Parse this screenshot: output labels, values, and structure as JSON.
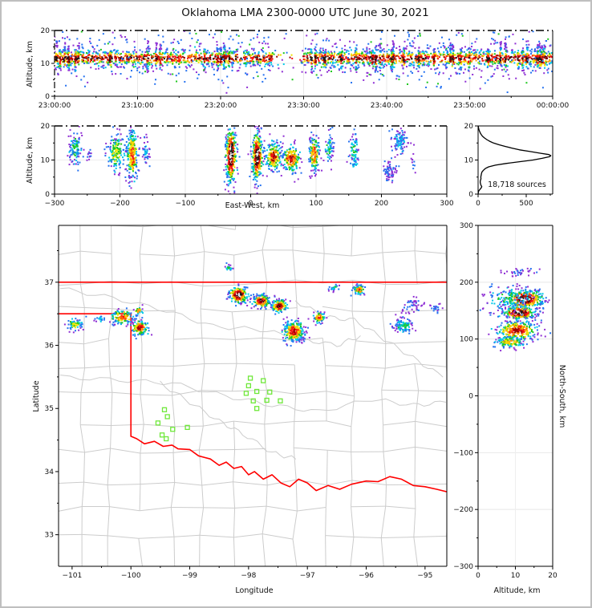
{
  "title": "Oklahoma LMA 2300-0000 UTC June 30, 2021",
  "chart_data": {
    "palette": [
      "#8f2fd4",
      "#2572f0",
      "#00c8e8",
      "#1ec81e",
      "#f0e400",
      "#ff9800",
      "#f51212",
      "#9c0404",
      "#181818",
      "#f5f5f5"
    ],
    "time_height": {
      "type": "scatter",
      "ylabel": "Altitude, km",
      "xlabel": "",
      "x_tick_labels": [
        "23:00:00",
        "23:10:00",
        "23:20:00",
        "23:30:00",
        "23:40:00",
        "23:50:00",
        "00:00:00"
      ],
      "x_tick_minutes": [
        0,
        10,
        20,
        30,
        40,
        50,
        60
      ],
      "x_range_minutes": [
        0,
        60
      ],
      "ylim": [
        0,
        20
      ],
      "y_ticks": [
        0,
        10,
        20
      ],
      "band": {
        "center_km": 11.6,
        "sigma_km": 1.25,
        "n": 2400,
        "gap_minutes": [
          26.3,
          29.7
        ],
        "gap_keep_fraction": 0.12
      },
      "streaks": {
        "n": 44,
        "alt_center": 11.3,
        "points_each": 22
      },
      "outliers": {
        "n": 330,
        "alt_min": 2.5,
        "alt_max": 19.8
      }
    },
    "ew_altitude": {
      "type": "scatter",
      "xlabel": "East-West, km",
      "ylabel": "Altitude, km",
      "xlim": [
        -300,
        300
      ],
      "x_ticks": [
        -300,
        -200,
        -100,
        0,
        100,
        200,
        300
      ],
      "ylim": [
        0,
        20
      ],
      "y_ticks": [
        0,
        10,
        20
      ],
      "clusters": [
        [
          -268,
          13.5,
          5,
          2.6,
          110,
          3
        ],
        [
          -247,
          12,
          2,
          1.2,
          12,
          1
        ],
        [
          -205,
          12,
          7,
          2.8,
          150,
          4
        ],
        [
          -181,
          11.5,
          4.5,
          3.8,
          260,
          6
        ],
        [
          -160,
          12.5,
          3,
          2,
          40,
          2
        ],
        [
          -30,
          11.5,
          4,
          4.3,
          400,
          9
        ],
        [
          10,
          11,
          4,
          3.6,
          330,
          9
        ],
        [
          35,
          11,
          6,
          2.1,
          190,
          7
        ],
        [
          62,
          10.3,
          7,
          2.0,
          190,
          7
        ],
        [
          97,
          11.8,
          4,
          2.7,
          170,
          6
        ],
        [
          120,
          13.5,
          3.5,
          2.2,
          60,
          3
        ],
        [
          158,
          12.5,
          3.5,
          2.8,
          80,
          3
        ],
        [
          213,
          6.8,
          5,
          1.4,
          70,
          1
        ],
        [
          228,
          15.3,
          5.5,
          1.9,
          100,
          2
        ],
        [
          250,
          9,
          2,
          1.5,
          10,
          1
        ]
      ]
    },
    "altitude_histogram": {
      "type": "line",
      "annotation": "18,718 sources",
      "xlim": [
        0,
        775
      ],
      "x_ticks": [
        0,
        500
      ],
      "ylim": [
        0,
        20
      ],
      "y_ticks": [
        0,
        10,
        20
      ],
      "profile_alt_km": [
        0,
        0.8,
        1.2,
        1.8,
        2.2,
        2.6,
        3.0,
        3.5,
        4.0,
        4.5,
        5.0,
        5.5,
        6.0,
        6.5,
        7.0,
        7.5,
        8.0,
        8.5,
        9.0,
        9.5,
        10.0,
        10.5,
        11.0,
        11.3,
        11.6,
        12.0,
        12.5,
        13.0,
        13.5,
        14.0,
        14.5,
        15.0,
        15.5,
        16.0,
        16.5,
        17.0,
        17.5,
        18.0,
        18.5,
        19.0,
        19.5,
        20.0
      ],
      "profile_counts": [
        0,
        4,
        14,
        32,
        38,
        30,
        26,
        22,
        24,
        30,
        28,
        32,
        35,
        40,
        55,
        75,
        110,
        180,
        290,
        430,
        570,
        665,
        745,
        755,
        735,
        645,
        540,
        430,
        350,
        280,
        215,
        160,
        120,
        90,
        65,
        45,
        32,
        22,
        14,
        8,
        4,
        2
      ]
    },
    "map": {
      "type": "map-scatter",
      "xlabel": "Longitude",
      "ylabel": "Latitude",
      "xlim": [
        -101.23,
        -94.63
      ],
      "ylim": [
        32.5,
        37.9
      ],
      "x_ticks": [
        -101,
        -100,
        -99,
        -98,
        -97,
        -96,
        -95
      ],
      "y_ticks": [
        33,
        34,
        35,
        36,
        37
      ],
      "state_border_color": "#ff0000",
      "county_color": "#cccccc",
      "station_color": "#6fe83a",
      "state_border": [
        [
          [
            -101.23,
            37.0
          ],
          [
            -94.63,
            37.0
          ]
        ],
        [
          [
            -101.23,
            36.5
          ],
          [
            -100.0,
            36.5
          ]
        ],
        [
          [
            -100.0,
            36.5
          ],
          [
            -100.0,
            34.56
          ]
        ],
        [
          [
            -100.0,
            34.56
          ],
          [
            -99.9,
            34.52
          ],
          [
            -99.77,
            34.44
          ],
          [
            -99.6,
            34.48
          ],
          [
            -99.45,
            34.4
          ],
          [
            -99.3,
            34.42
          ],
          [
            -99.2,
            34.36
          ],
          [
            -99.0,
            34.35
          ],
          [
            -98.85,
            34.25
          ],
          [
            -98.65,
            34.2
          ],
          [
            -98.5,
            34.1
          ],
          [
            -98.38,
            34.15
          ],
          [
            -98.25,
            34.05
          ],
          [
            -98.12,
            34.08
          ],
          [
            -98.0,
            33.95
          ],
          [
            -97.9,
            34.0
          ],
          [
            -97.75,
            33.88
          ],
          [
            -97.6,
            33.95
          ],
          [
            -97.45,
            33.82
          ],
          [
            -97.3,
            33.76
          ],
          [
            -97.15,
            33.88
          ],
          [
            -97.0,
            33.82
          ],
          [
            -96.85,
            33.7
          ],
          [
            -96.65,
            33.78
          ],
          [
            -96.45,
            33.72
          ],
          [
            -96.25,
            33.8
          ],
          [
            -96.0,
            33.85
          ],
          [
            -95.8,
            33.84
          ],
          [
            -95.6,
            33.92
          ],
          [
            -95.4,
            33.88
          ],
          [
            -95.2,
            33.78
          ],
          [
            -95.0,
            33.76
          ],
          [
            -94.8,
            33.72
          ],
          [
            -94.63,
            33.68
          ]
        ]
      ],
      "rivers": [
        [
          [
            -101.2,
            36.9
          ],
          [
            -100.3,
            36.75
          ],
          [
            -99.4,
            36.55
          ],
          [
            -98.6,
            36.3
          ],
          [
            -97.8,
            36.25
          ],
          [
            -97.1,
            36.1
          ],
          [
            -96.5,
            36.0
          ],
          [
            -96.1,
            36.15
          ]
        ],
        [
          [
            -101.2,
            35.5
          ],
          [
            -100.2,
            35.45
          ],
          [
            -99.3,
            35.4
          ],
          [
            -98.4,
            35.2
          ],
          [
            -97.6,
            35.05
          ],
          [
            -96.8,
            34.95
          ],
          [
            -95.9,
            35.15
          ],
          [
            -95.2,
            35.05
          ],
          [
            -94.65,
            35.1
          ]
        ],
        [
          [
            -99.5,
            35.4
          ],
          [
            -99.0,
            35.1
          ],
          [
            -98.5,
            34.8
          ],
          [
            -98.1,
            34.6
          ],
          [
            -97.6,
            34.3
          ],
          [
            -97.2,
            34.2
          ]
        ],
        [
          [
            -97.2,
            36.7
          ],
          [
            -96.7,
            36.45
          ],
          [
            -96.2,
            36.4
          ],
          [
            -95.7,
            36.1
          ],
          [
            -95.2,
            35.8
          ],
          [
            -94.7,
            35.5
          ]
        ]
      ],
      "stations": [
        [
          -97.97,
          35.48
        ],
        [
          -97.75,
          35.44
        ],
        [
          -98.0,
          35.36
        ],
        [
          -98.04,
          35.24
        ],
        [
          -97.86,
          35.27
        ],
        [
          -97.64,
          35.26
        ],
        [
          -97.69,
          35.13
        ],
        [
          -97.46,
          35.12
        ],
        [
          -97.92,
          35.12
        ],
        [
          -97.86,
          35.0
        ],
        [
          -99.43,
          34.98
        ],
        [
          -99.38,
          34.87
        ],
        [
          -99.54,
          34.77
        ],
        [
          -99.29,
          34.67
        ],
        [
          -99.04,
          34.7
        ],
        [
          -99.47,
          34.58
        ],
        [
          -99.4,
          34.52
        ]
      ],
      "clusters": [
        [
          -100.95,
          36.33,
          0.07,
          0.05,
          70,
          4
        ],
        [
          -100.52,
          36.42,
          0.05,
          0.03,
          18,
          2
        ],
        [
          -100.15,
          36.45,
          0.1,
          0.06,
          120,
          6
        ],
        [
          -99.87,
          36.55,
          0.04,
          0.035,
          30,
          5
        ],
        [
          -99.85,
          36.28,
          0.07,
          0.06,
          140,
          7
        ],
        [
          -98.32,
          37.22,
          0.035,
          0.03,
          20,
          3
        ],
        [
          -98.17,
          36.8,
          0.08,
          0.065,
          210,
          9
        ],
        [
          -97.78,
          36.7,
          0.075,
          0.05,
          160,
          8
        ],
        [
          -97.48,
          36.62,
          0.065,
          0.05,
          140,
          8
        ],
        [
          -97.23,
          36.22,
          0.09,
          0.085,
          260,
          7
        ],
        [
          -96.8,
          36.44,
          0.05,
          0.04,
          80,
          7
        ],
        [
          -96.55,
          36.92,
          0.04,
          0.03,
          25,
          3
        ],
        [
          -96.12,
          36.88,
          0.05,
          0.04,
          65,
          6
        ],
        [
          -95.37,
          36.32,
          0.08,
          0.06,
          110,
          3
        ],
        [
          -95.22,
          36.62,
          0.1,
          0.06,
          45,
          1
        ],
        [
          -94.8,
          36.6,
          0.07,
          0.04,
          22,
          1
        ]
      ]
    },
    "ns_altitude": {
      "type": "scatter",
      "xlabel": "Altitude, km",
      "ylabel": "North-South, km",
      "xlim": [
        0,
        20
      ],
      "x_ticks": [
        0,
        10,
        20
      ],
      "ylim": [
        -300,
        300
      ],
      "y_ticks": [
        -300,
        -200,
        -100,
        0,
        100,
        200,
        300
      ],
      "clusters": [
        [
          170,
          12.5,
          8,
          2.6,
          360,
          9
        ],
        [
          146,
          11,
          6,
          2.2,
          260,
          9
        ],
        [
          115,
          10.5,
          9,
          2.8,
          300,
          7
        ],
        [
          95,
          8.5,
          5,
          2.2,
          130,
          5
        ],
        [
          170,
          8,
          12,
          3.5,
          120,
          3
        ],
        [
          218,
          11,
          3,
          2.2,
          35,
          1
        ]
      ]
    }
  }
}
